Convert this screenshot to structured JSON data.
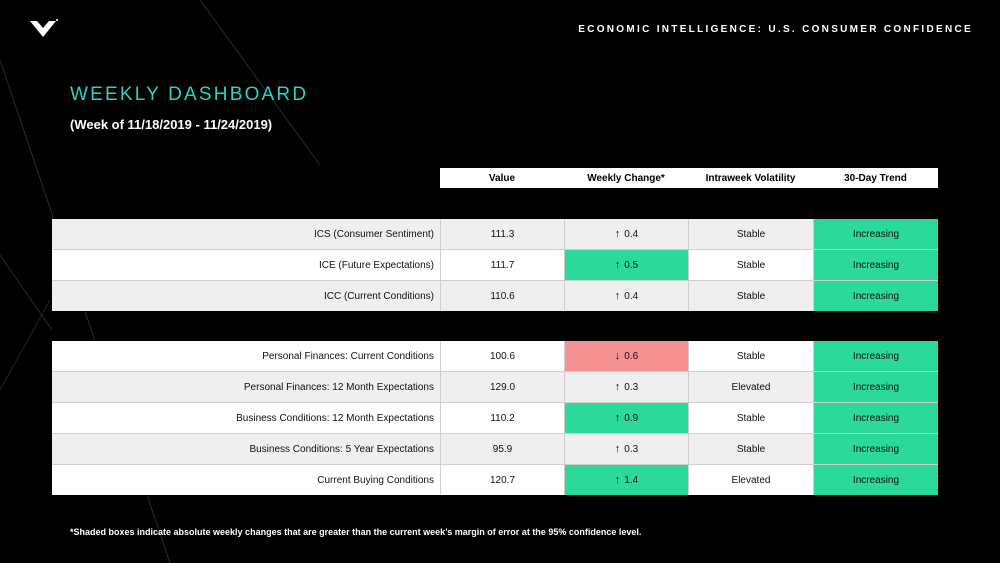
{
  "header": {
    "title": "ECONOMIC INTELLIGENCE: U.S. CONSUMER CONFIDENCE"
  },
  "page": {
    "title": "WEEKLY DASHBOARD",
    "subtitle": "(Week of 11/18/2019 - 11/24/2019)"
  },
  "table": {
    "columns": [
      "Value",
      "Weekly Change*",
      "Intraweek Volatility",
      "30-Day Trend"
    ],
    "groups": [
      [
        {
          "label": "ICS (Consumer Sentiment)",
          "value": "111.3",
          "direction": "up",
          "change": "0.4",
          "change_highlight": "none",
          "volatility": "Stable",
          "trend": "Increasing",
          "trend_highlight": "green"
        },
        {
          "label": "ICE (Future Expectations)",
          "value": "111.7",
          "direction": "up",
          "change": "0.5",
          "change_highlight": "green",
          "volatility": "Stable",
          "trend": "Increasing",
          "trend_highlight": "green"
        },
        {
          "label": "ICC (Current Conditions)",
          "value": "110.6",
          "direction": "up",
          "change": "0.4",
          "change_highlight": "none",
          "volatility": "Stable",
          "trend": "Increasing",
          "trend_highlight": "green"
        }
      ],
      [
        {
          "label": "Personal Finances: Current Conditions",
          "value": "100.6",
          "direction": "down",
          "change": "0.6",
          "change_highlight": "red",
          "volatility": "Stable",
          "trend": "Increasing",
          "trend_highlight": "green"
        },
        {
          "label": "Personal Finances: 12 Month Expectations",
          "value": "129.0",
          "direction": "up",
          "change": "0.3",
          "change_highlight": "none",
          "volatility": "Elevated",
          "trend": "Increasing",
          "trend_highlight": "green"
        },
        {
          "label": "Business Conditions: 12 Month Expectations",
          "value": "110.2",
          "direction": "up",
          "change": "0.9",
          "change_highlight": "green",
          "volatility": "Stable",
          "trend": "Increasing",
          "trend_highlight": "green"
        },
        {
          "label": "Business Conditions: 5 Year Expectations",
          "value": "95.9",
          "direction": "up",
          "change": "0.3",
          "change_highlight": "none",
          "volatility": "Stable",
          "trend": "Increasing",
          "trend_highlight": "green"
        },
        {
          "label": "Current Buying Conditions",
          "value": "120.7",
          "direction": "up",
          "change": "1.4",
          "change_highlight": "green",
          "volatility": "Elevated",
          "trend": "Increasing",
          "trend_highlight": "green"
        }
      ]
    ]
  },
  "footnote": "*Shaded boxes indicate absolute weekly changes that are greater than the current week’s margin of error at the 95% confidence level.",
  "colors": {
    "accent": "#28d5c3",
    "highlight_green": "#2bd99a",
    "highlight_red": "#f49292",
    "background": "#000000"
  },
  "icons": {
    "logo": "m-chevron-logo-icon",
    "up": "arrow-up-icon",
    "down": "arrow-down-icon"
  }
}
